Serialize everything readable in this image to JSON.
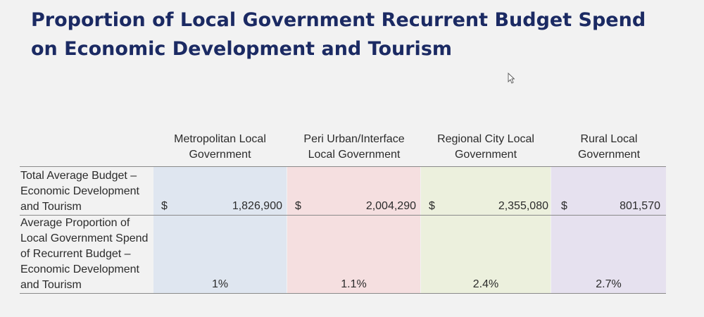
{
  "title": "Proportion of Local Government Recurrent Budget Spend on Economic Development and Tourism",
  "columns": [
    {
      "label": "Metropolitan Local Government",
      "budget_currency": "$",
      "budget_value": "1,826,900",
      "proportion": "1%",
      "band_color": "#dfe6f0"
    },
    {
      "label": "Peri Urban/Interface Local Government",
      "budget_currency": "$",
      "budget_value": "2,004,290",
      "proportion": "1.1%",
      "band_color": "#f5dfe0"
    },
    {
      "label": "Regional City Local Government",
      "budget_currency": "$",
      "budget_value": "2,355,080",
      "proportion": "2.4%",
      "band_color": "#ecf0dd"
    },
    {
      "label": "Rural Local Government",
      "budget_currency": "$",
      "budget_value": "801,570",
      "proportion": "2.7%",
      "band_color": "#e6e1ef"
    }
  ],
  "rows": {
    "budget_label": "Total Average Budget – Economic Development and Tourism",
    "proportion_label": "Average Proportion of Local Government Spend of Recurrent Budget – Economic Development and Tourism"
  }
}
